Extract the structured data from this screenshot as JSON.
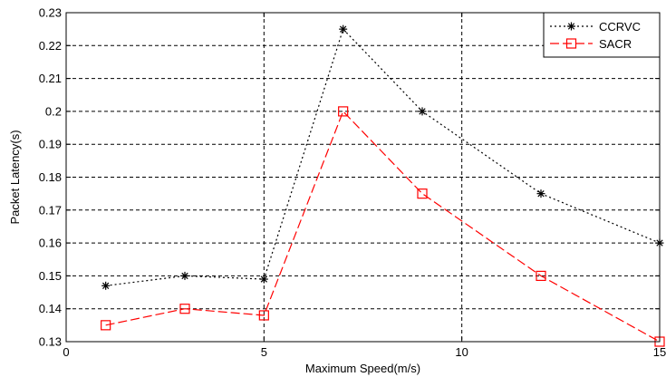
{
  "chart_data": {
    "type": "line",
    "title": "",
    "xlabel": "Maximum Speed(m/s)",
    "ylabel": "Packet Latency(s)",
    "xlim": [
      0,
      15
    ],
    "ylim": [
      0.13,
      0.23
    ],
    "xticks": [
      0,
      5,
      10,
      15
    ],
    "yticks": [
      0.13,
      0.14,
      0.15,
      0.16,
      0.17,
      0.18,
      0.19,
      0.2,
      0.21,
      0.22,
      0.23
    ],
    "xtick_labels": [
      "0",
      "5",
      "10",
      "15"
    ],
    "ytick_labels": [
      "0.13",
      "0.14",
      "0.15",
      "0.16",
      "0.17",
      "0.18",
      "0.19",
      "0.2",
      "0.21",
      "0.22",
      "0.23"
    ],
    "grid": true,
    "legend_position": "top-right",
    "series": [
      {
        "name": "CCRVC",
        "color": "#000000",
        "line_style": "dotted",
        "marker": "asterisk",
        "x": [
          1,
          3,
          5,
          7,
          9,
          12,
          15
        ],
        "y": [
          0.147,
          0.15,
          0.149,
          0.225,
          0.2,
          0.175,
          0.16
        ]
      },
      {
        "name": "SACR",
        "color": "#ff0000",
        "line_style": "dashed",
        "marker": "square",
        "x": [
          1,
          3,
          5,
          7,
          9,
          12,
          15
        ],
        "y": [
          0.135,
          0.14,
          0.138,
          0.2,
          0.175,
          0.15,
          0.13
        ]
      }
    ]
  }
}
